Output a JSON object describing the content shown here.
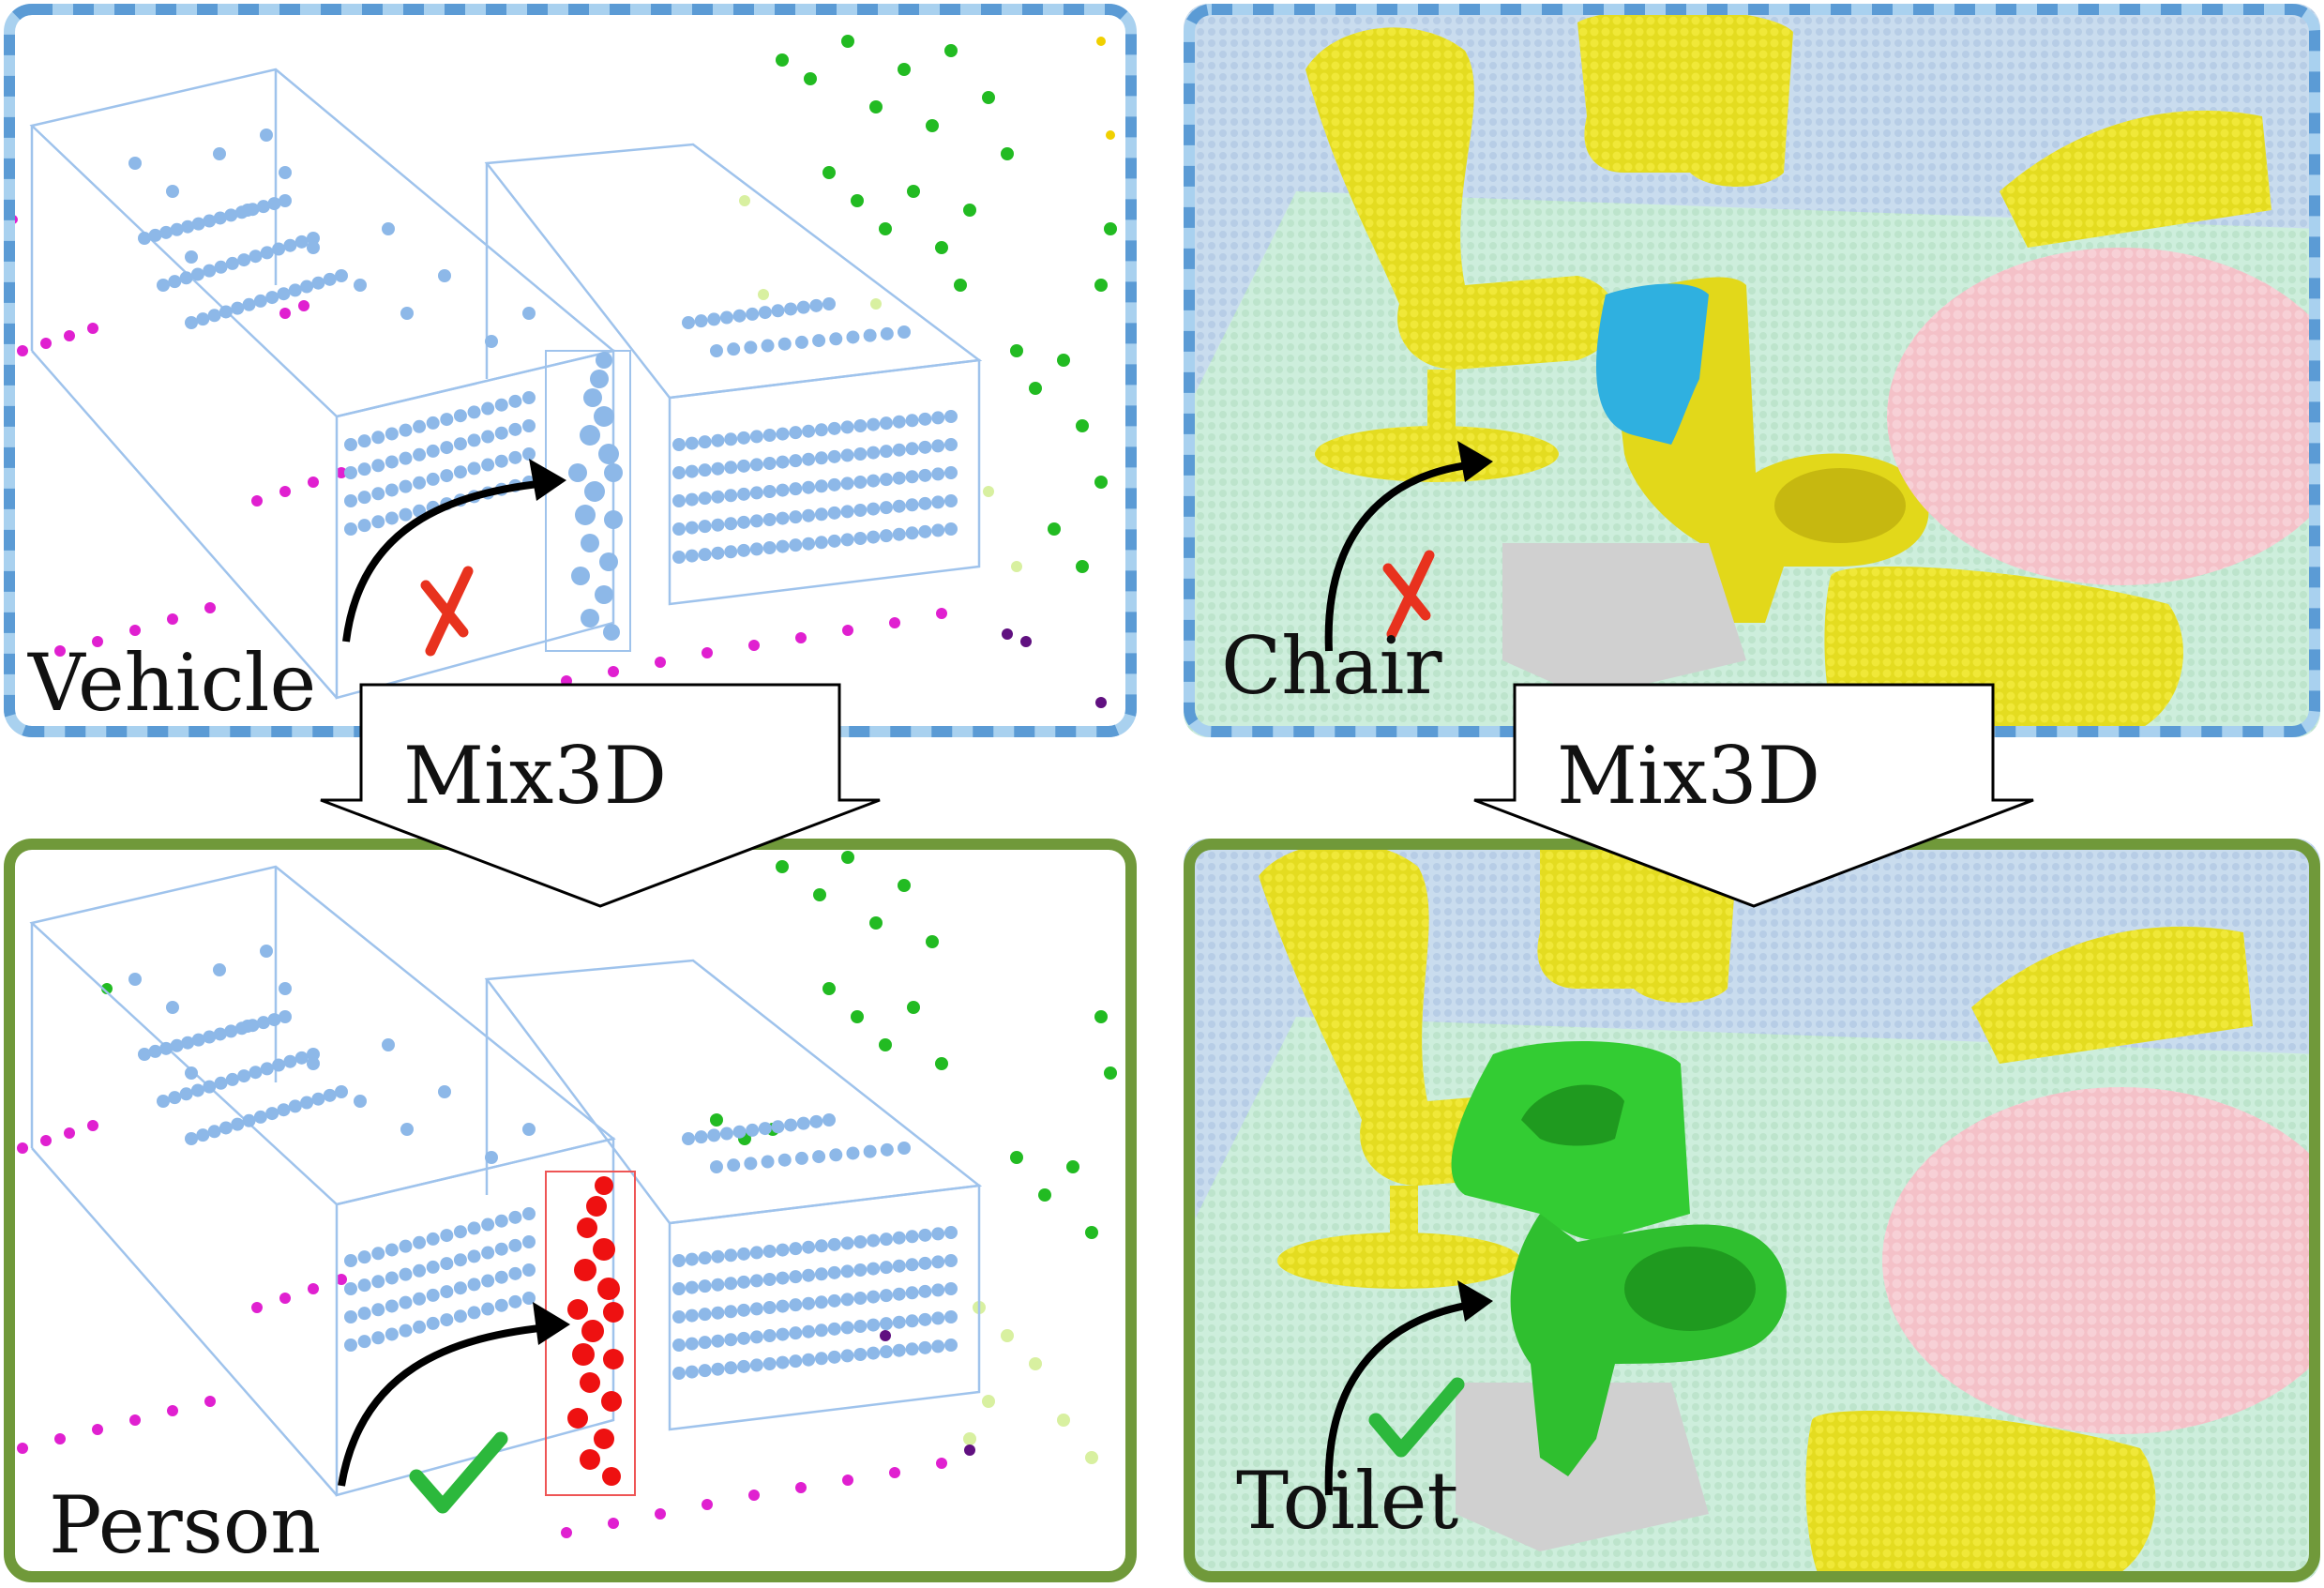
{
  "figure": {
    "top_left": {
      "label": "Vehicle",
      "mark": "cross"
    },
    "bottom_left": {
      "label": "Person",
      "mark": "check"
    },
    "top_right": {
      "label": "Chair",
      "mark": "cross"
    },
    "bottom_right": {
      "label": "Toilet",
      "mark": "check"
    },
    "arrow_left": "Mix3D",
    "arrow_right": "Mix3D"
  },
  "colors": {
    "blue_frame": "#5b9bd5",
    "blue_frame_light": "#a9d1ef",
    "green_frame": "#70993a",
    "point_blue": "#8db8e8",
    "point_magenta": "#e020d0",
    "point_green": "#22bb22",
    "person_red": "#ee1111",
    "chair_yellow": "#e8e020",
    "table_pink": "#f3b8c0",
    "floor_green": "#c9ebd4",
    "toilet_wrong_blue": "#2fb0e0",
    "toilet_green": "#33cc33",
    "cross_red": "#e8321e",
    "check_green": "#2cb83c"
  }
}
